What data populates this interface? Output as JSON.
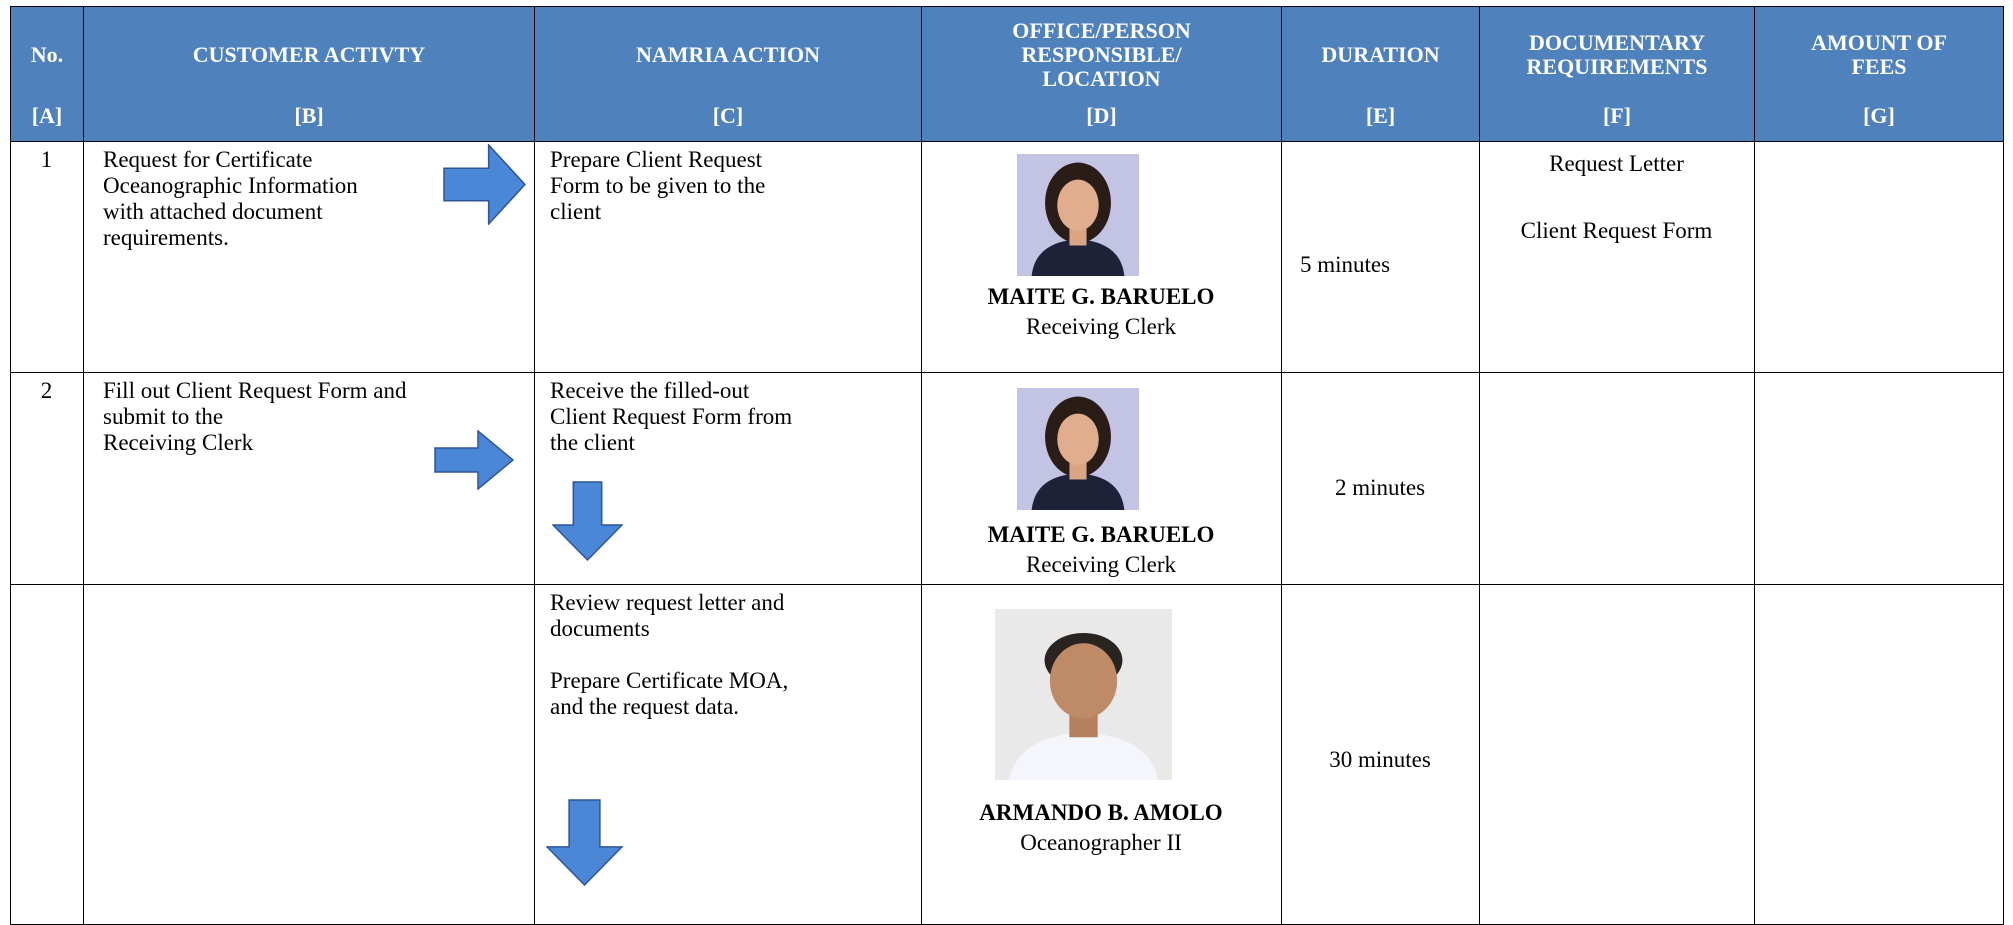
{
  "header": {
    "columns": [
      {
        "title": [
          "No."
        ],
        "code": "[A]"
      },
      {
        "title": [
          "CUSTOMER ACTIVTY"
        ],
        "code": "[B]"
      },
      {
        "title": [
          "NAMRIA ACTION"
        ],
        "code": "[C]"
      },
      {
        "title": [
          "OFFICE/PERSON",
          "RESPONSIBLE/",
          "LOCATION"
        ],
        "code": "[D]"
      },
      {
        "title": [
          "DURATION"
        ],
        "code": "[E]"
      },
      {
        "title": [
          "DOCUMENTARY",
          "REQUIREMENTS"
        ],
        "code": "[F]"
      },
      {
        "title": [
          "AMOUNT OF",
          "FEES"
        ],
        "code": "[G]"
      }
    ]
  },
  "rows": [
    {
      "no": "1",
      "customer_activity": [
        "Request for Certificate",
        "Oceanographic Information",
        "with attached document",
        "requirements."
      ],
      "namria_action": [
        [
          "Prepare Client Request",
          "Form to be given to the",
          "client"
        ]
      ],
      "person": {
        "name": "MAITE G. BARUELO",
        "position": "Receiving Clerk"
      },
      "duration": "5 minutes",
      "requirements": [
        "Request Letter",
        "Client Request Form"
      ]
    },
    {
      "no": "2",
      "customer_activity": [
        "Fill out Client Request Form and",
        "submit to the",
        "Receiving Clerk"
      ],
      "namria_action": [
        [
          "Receive the filled-out",
          "Client Request Form from",
          "the client"
        ]
      ],
      "person": {
        "name": "MAITE G. BARUELO",
        "position": "Receiving Clerk"
      },
      "duration": "2 minutes"
    },
    {
      "namria_action": [
        [
          "Review request letter and",
          "documents"
        ],
        [
          "Prepare Certificate MOA,",
          "and the request data."
        ]
      ],
      "person": {
        "name": "ARMANDO B. AMOLO",
        "position": "Oceanographer II"
      },
      "duration": "30 minutes"
    }
  ]
}
